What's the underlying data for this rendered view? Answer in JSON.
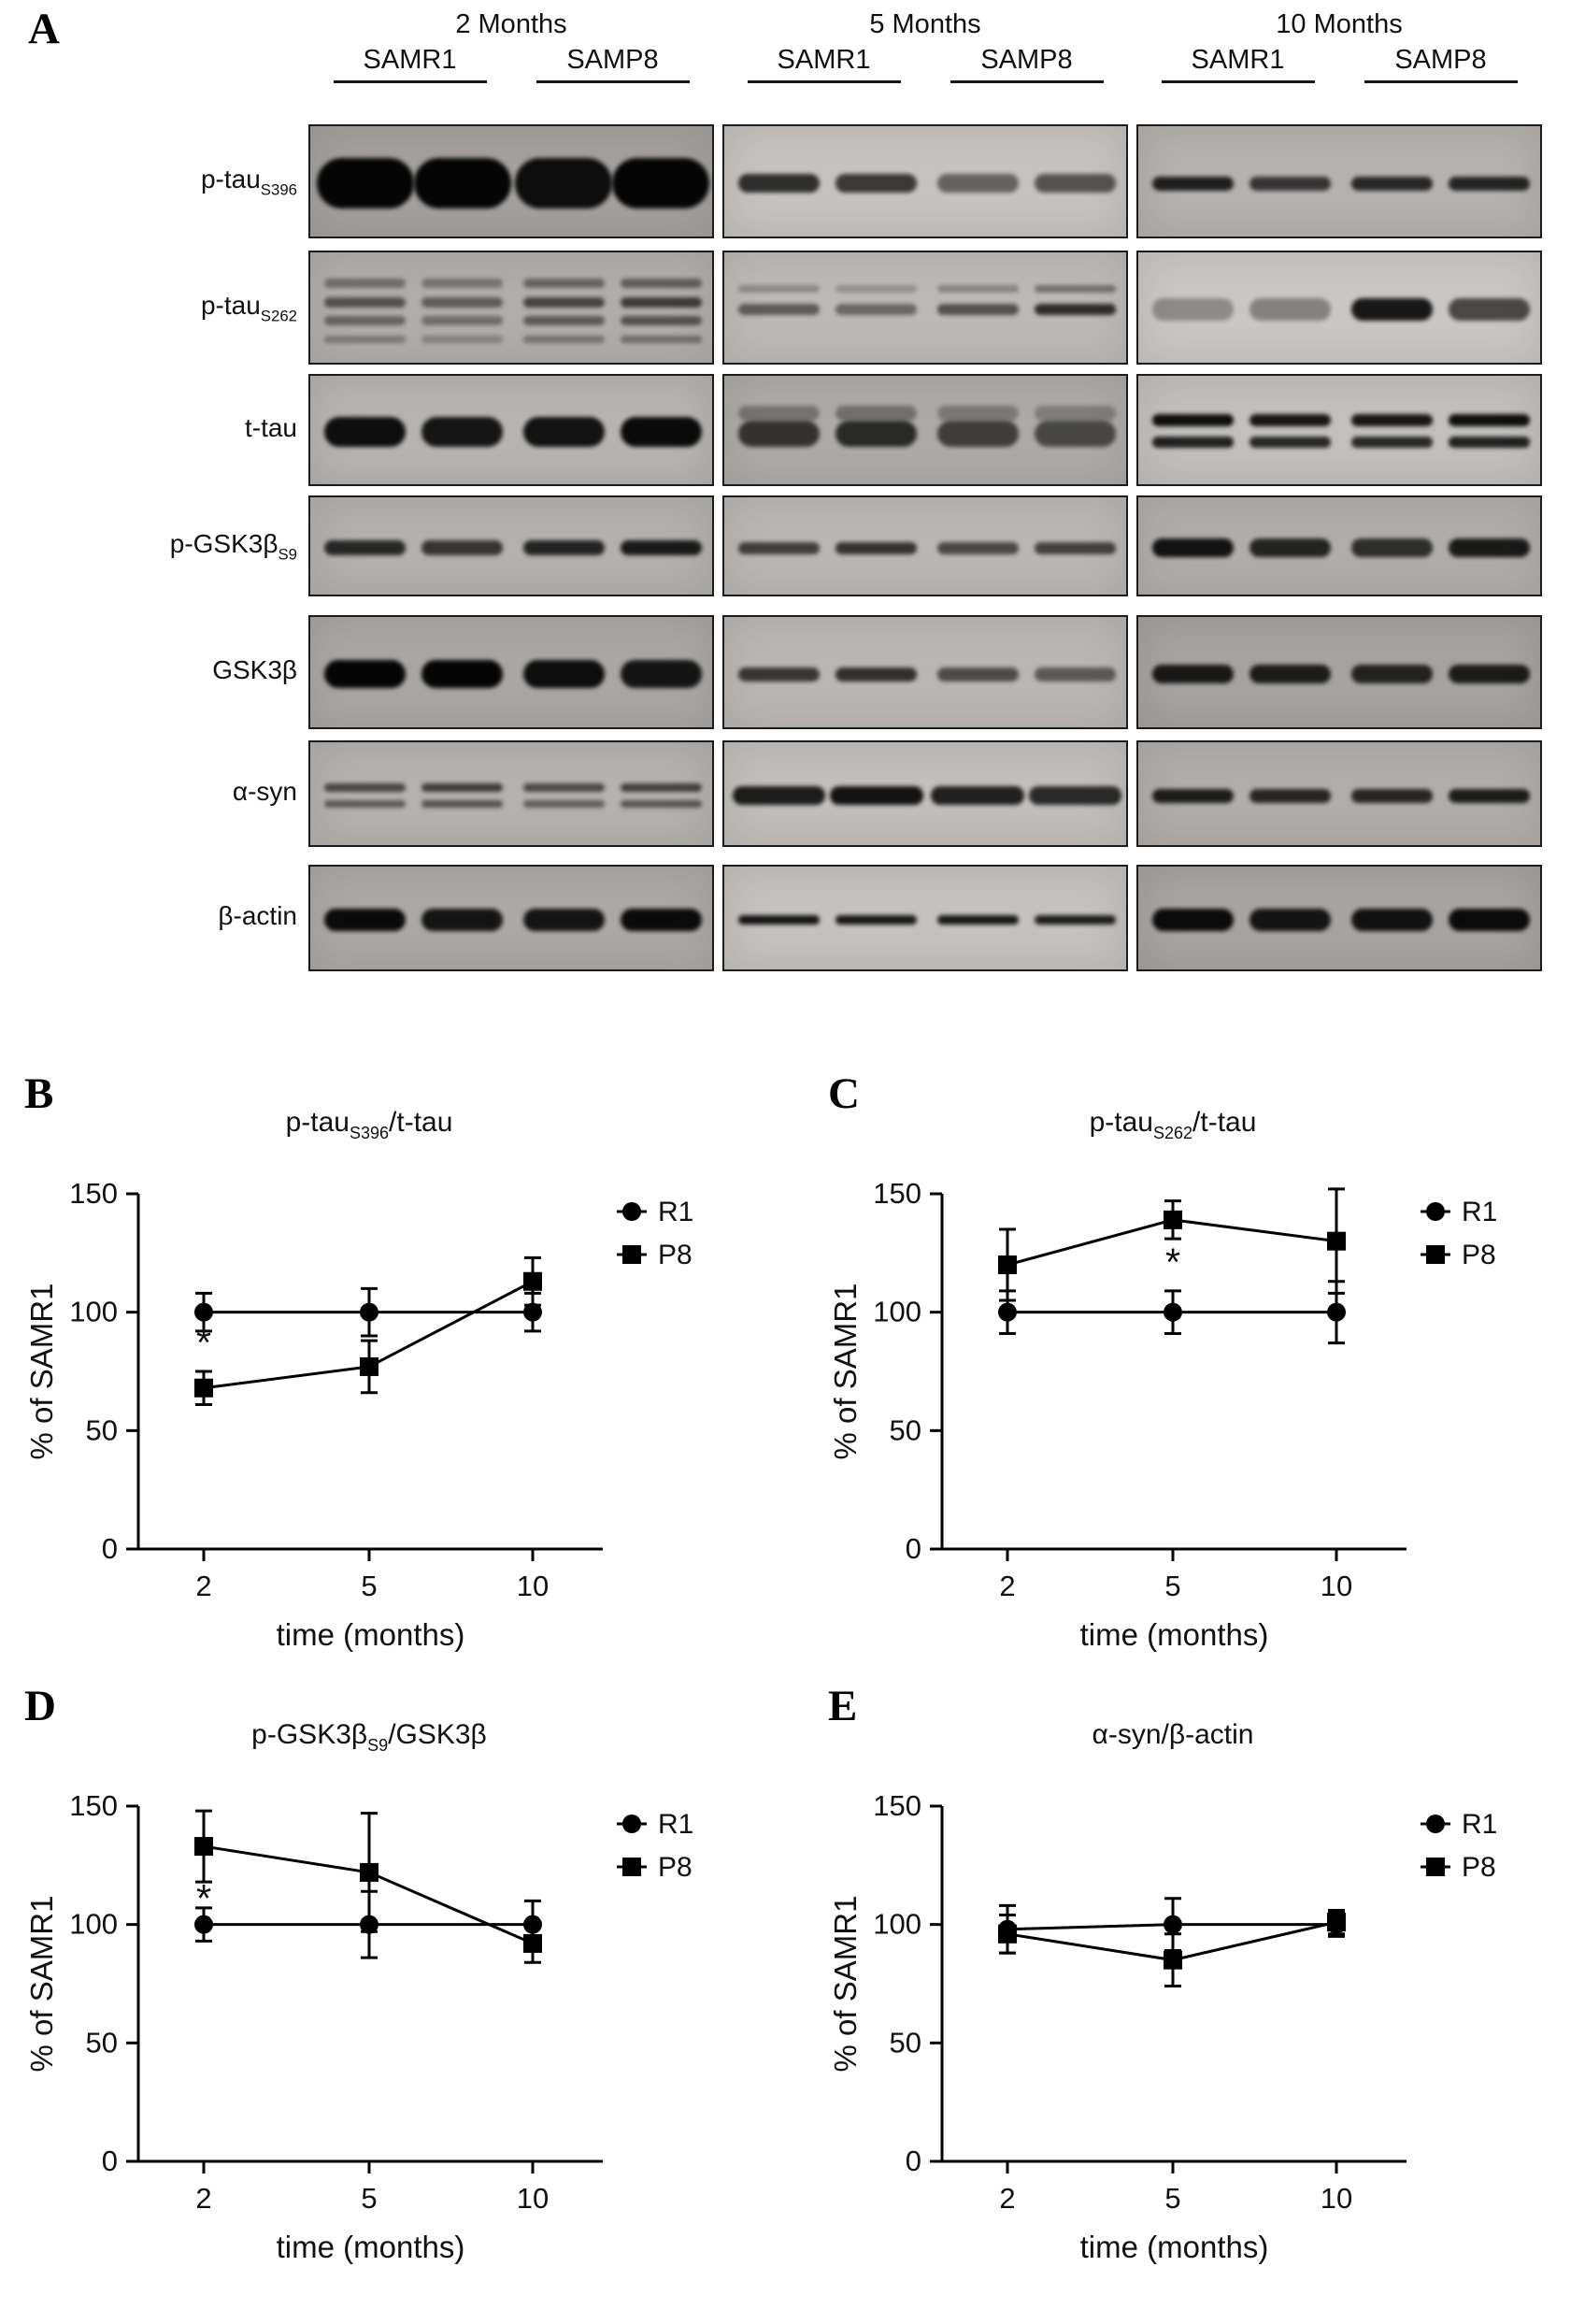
{
  "panel_a": {
    "label": "A",
    "month_headers": [
      "2 Months",
      "5 Months",
      "10 Months"
    ],
    "strain_headers": [
      "SAMR1",
      "SAMP8"
    ],
    "rows": [
      {
        "label_parts": [
          {
            "t": "p-tau"
          },
          {
            "t": "S396",
            "sub": true
          }
        ],
        "groups": [
          {
            "bg": "#a3a09d",
            "bandH": 54,
            "w": 0.24,
            "alphas": [
              1,
              1,
              0.95,
              1
            ]
          },
          {
            "bg": "#c5c2bf",
            "bandH": 20,
            "alphas": [
              0.78,
              0.72,
              0.5,
              0.58
            ]
          },
          {
            "bg": "#b4b1ae",
            "bandH": 15,
            "alphas": [
              0.85,
              0.72,
              0.8,
              0.82
            ]
          }
        ]
      },
      {
        "label_parts": [
          {
            "t": "p-tau"
          },
          {
            "t": "S262",
            "sub": true
          }
        ],
        "groups": [
          {
            "bg": "#b1adaa",
            "bandH": 11,
            "alphas": [
              0.55,
              0.48,
              0.62,
              0.68
            ],
            "bands": [
              {
                "dy": -28,
                "h": 0.9,
                "a": 0.7
              },
              {
                "dy": -8,
                "h": 1,
                "a": 1
              },
              {
                "dy": 12,
                "h": 0.9,
                "a": 0.8
              },
              {
                "dy": 32,
                "h": 0.7,
                "a": 0.55
              }
            ]
          },
          {
            "bg": "#bcb9b6",
            "bandH": 12,
            "alphas": [
              0.52,
              0.45,
              0.58,
              0.78
            ],
            "bands": [
              {
                "dy": -22,
                "h": 0.7,
                "a": 0.5
              },
              {
                "dy": 0,
                "h": 1,
                "a": 1
              }
            ]
          },
          {
            "bg": "#c9c6c3",
            "bandH": 24,
            "alphas": [
              0.3,
              0.35,
              0.9,
              0.65
            ]
          }
        ]
      },
      {
        "label_parts": [
          {
            "t": "t-tau"
          }
        ],
        "groups": [
          {
            "bg": "#b6b3b0",
            "bandH": 32,
            "alphas": [
              0.95,
              0.9,
              0.92,
              0.97
            ]
          },
          {
            "bg": "#adaaa7",
            "bandH": 28,
            "alphas": [
              0.72,
              0.78,
              0.66,
              0.6
            ],
            "bands": [
              {
                "dy": -20,
                "h": 0.6,
                "a": 0.45
              },
              {
                "dy": 2,
                "h": 1,
                "a": 1
              }
            ]
          },
          {
            "bg": "#c2bfbc",
            "bandH": 13,
            "alphas": [
              0.95,
              0.9,
              0.9,
              0.95
            ],
            "bands": [
              {
                "dy": -13,
                "h": 1,
                "a": 1
              },
              {
                "dy": 11,
                "h": 0.9,
                "a": 0.9
              }
            ]
          }
        ]
      },
      {
        "label_parts": [
          {
            "t": "p-GSK3β"
          },
          {
            "t": "S9",
            "sub": true
          }
        ],
        "groups": [
          {
            "bg": "#b3b0ad",
            "bandH": 16,
            "alphas": [
              0.8,
              0.72,
              0.82,
              0.88
            ]
          },
          {
            "bg": "#b9b6b3",
            "bandH": 13,
            "alphas": [
              0.68,
              0.74,
              0.62,
              0.66
            ]
          },
          {
            "bg": "#b0adaa",
            "bandH": 20,
            "alphas": [
              0.92,
              0.82,
              0.76,
              0.88
            ]
          }
        ]
      },
      {
        "label_parts": [
          {
            "t": "GSK3β"
          }
        ],
        "groups": [
          {
            "bg": "#a9a6a3",
            "bandH": 30,
            "alphas": [
              1,
              1,
              0.95,
              0.9
            ]
          },
          {
            "bg": "#b9b6b3",
            "bandH": 15,
            "alphas": [
              0.72,
              0.76,
              0.6,
              0.52
            ]
          },
          {
            "bg": "#a5a29f",
            "bandH": 20,
            "alphas": [
              0.88,
              0.86,
              0.82,
              0.86
            ]
          }
        ]
      },
      {
        "label_parts": [
          {
            "t": "α-syn"
          }
        ],
        "groups": [
          {
            "bg": "#b4b1ae",
            "bandH": 9,
            "alphas": [
              0.62,
              0.68,
              0.6,
              0.66
            ],
            "bands": [
              {
                "dy": -9,
                "h": 1,
                "a": 1
              },
              {
                "dy": 9,
                "h": 0.9,
                "a": 0.8
              }
            ]
          },
          {
            "bg": "#c1bebb",
            "bandH": 20,
            "w": 0.23,
            "alphas": [
              0.88,
              0.92,
              0.85,
              0.8
            ]
          },
          {
            "bg": "#b0adaa",
            "bandH": 15,
            "alphas": [
              0.86,
              0.8,
              0.8,
              0.86
            ]
          }
        ]
      },
      {
        "label_parts": [
          {
            "t": "β-actin"
          }
        ],
        "groups": [
          {
            "bg": "#aba8a5",
            "bandH": 24,
            "alphas": [
              0.96,
              0.9,
              0.9,
              0.96
            ]
          },
          {
            "bg": "#c4c1be",
            "bandH": 10,
            "alphas": [
              0.92,
              0.9,
              0.9,
              0.86
            ]
          },
          {
            "bg": "#a6a3a0",
            "bandH": 24,
            "alphas": [
              0.96,
              0.9,
              0.92,
              0.96
            ]
          }
        ]
      }
    ]
  },
  "chart_data": [
    {
      "panel_label": "B",
      "type": "line",
      "title_parts": [
        {
          "t": "p-tau"
        },
        {
          "t": "S396",
          "sub": true
        },
        {
          "t": "/t-tau"
        }
      ],
      "xlabel": "time (months)",
      "ylabel": "% of SAMR1",
      "x_ticks": [
        "2",
        "5",
        "10"
      ],
      "x_values": [
        2,
        5,
        10
      ],
      "ylim": [
        0,
        150
      ],
      "yticks": [
        0,
        50,
        100,
        150
      ],
      "legend_position": "right",
      "grid": false,
      "series": [
        {
          "name": "R1",
          "marker": "circle",
          "values": [
            100,
            100,
            100
          ],
          "errors": [
            8,
            10,
            8
          ]
        },
        {
          "name": "P8",
          "marker": "square",
          "values": [
            68,
            77,
            113
          ],
          "errors": [
            7,
            11,
            10
          ]
        }
      ],
      "annotations": [
        {
          "text": "*",
          "x_index": 0,
          "y": 87
        }
      ]
    },
    {
      "panel_label": "C",
      "type": "line",
      "title_parts": [
        {
          "t": "p-tau"
        },
        {
          "t": "S262",
          "sub": true
        },
        {
          "t": "/t-tau"
        }
      ],
      "xlabel": "time (months)",
      "ylabel": "% of SAMR1",
      "x_ticks": [
        "2",
        "5",
        "10"
      ],
      "x_values": [
        2,
        5,
        10
      ],
      "ylim": [
        0,
        150
      ],
      "yticks": [
        0,
        50,
        100,
        150
      ],
      "legend_position": "right",
      "grid": false,
      "series": [
        {
          "name": "R1",
          "marker": "circle",
          "values": [
            100,
            100,
            100
          ],
          "errors": [
            9,
            9,
            13
          ]
        },
        {
          "name": "P8",
          "marker": "square",
          "values": [
            120,
            139,
            130
          ],
          "errors": [
            15,
            8,
            22
          ]
        }
      ],
      "annotations": [
        {
          "text": "*",
          "x_index": 1,
          "y": 121
        }
      ]
    },
    {
      "panel_label": "D",
      "type": "line",
      "title_parts": [
        {
          "t": "p-GSK3β"
        },
        {
          "t": "S9",
          "sub": true
        },
        {
          "t": "/GSK3β"
        }
      ],
      "xlabel": "time (months)",
      "ylabel": "% of SAMR1",
      "x_ticks": [
        "2",
        "5",
        "10"
      ],
      "x_values": [
        2,
        5,
        10
      ],
      "ylim": [
        0,
        150
      ],
      "yticks": [
        0,
        50,
        100,
        150
      ],
      "legend_position": "right",
      "grid": false,
      "series": [
        {
          "name": "R1",
          "marker": "circle",
          "values": [
            100,
            100,
            100
          ],
          "errors": [
            7,
            14,
            10
          ]
        },
        {
          "name": "P8",
          "marker": "square",
          "values": [
            133,
            122,
            92
          ],
          "errors": [
            15,
            25,
            8
          ]
        }
      ],
      "annotations": [
        {
          "text": "*",
          "x_index": 0,
          "y": 111
        }
      ]
    },
    {
      "panel_label": "E",
      "type": "line",
      "title_parts": [
        {
          "t": "α-syn/β-actin"
        }
      ],
      "xlabel": "time (months)",
      "ylabel": "% of SAMR1",
      "x_ticks": [
        "2",
        "5",
        "10"
      ],
      "x_values": [
        2,
        5,
        10
      ],
      "ylim": [
        0,
        150
      ],
      "yticks": [
        0,
        50,
        100,
        150
      ],
      "legend_position": "right",
      "grid": false,
      "series": [
        {
          "name": "R1",
          "marker": "circle",
          "values": [
            98,
            100,
            100
          ],
          "errors": [
            10,
            11,
            5
          ]
        },
        {
          "name": "P8",
          "marker": "square",
          "values": [
            96,
            85,
            101
          ],
          "errors": [
            8,
            11,
            5
          ]
        }
      ],
      "annotations": []
    }
  ]
}
